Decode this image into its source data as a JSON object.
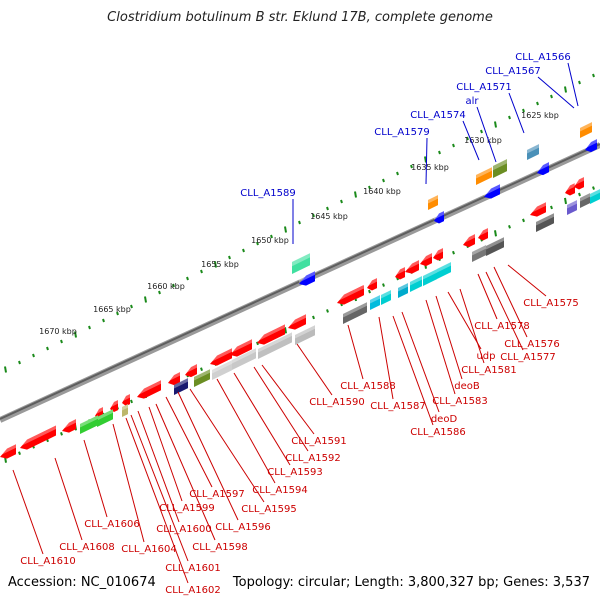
{
  "title": "Clostridium botulinum B str. Eklund 17B, complete genome",
  "footer": {
    "accession": "Accession: NC_010674",
    "stats": "Topology: circular; Length: 3,800,327 bp; Genes: 3,537"
  },
  "colors": {
    "backbone": "#707070",
    "tick_marks": "#1a8a1a",
    "forward_label": "#0000cc",
    "reverse_label": "#cc0000",
    "gene_red": "#ff0000",
    "gene_blue": "#0000ff"
  },
  "scale_ticks": [
    "1625 kbp",
    "1630 kbp",
    "1635 kbp",
    "1640 kbp",
    "1645 kbp",
    "1650 kbp",
    "1655 kbp",
    "1660 kbp",
    "1665 kbp",
    "1670 kbp"
  ],
  "forward_labels": [
    "CLL_A1566",
    "CLL_A1567",
    "CLL_A1571",
    "alr",
    "CLL_A1574",
    "CLL_A1579",
    "CLL_A1589"
  ],
  "reverse_labels": [
    "CLL_A1575",
    "CLL_A1576",
    "CLL_A1577",
    "CLL_A1578",
    "CLL_A1581",
    "udp",
    "deoB",
    "CLL_A1583",
    "CLL_A1586",
    "deoD",
    "CLL_A1587",
    "CLL_A1588",
    "CLL_A1590",
    "CLL_A1591",
    "CLL_A1592",
    "CLL_A1593",
    "CLL_A1594",
    "CLL_A1595",
    "CLL_A1596",
    "CLL_A1597",
    "CLL_A1598",
    "CLL_A1599",
    "CLL_A1600",
    "CLL_A1601",
    "CLL_A1602",
    "CLL_A1604",
    "CLL_A1606",
    "CLL_A1608",
    "CLL_A1610"
  ]
}
